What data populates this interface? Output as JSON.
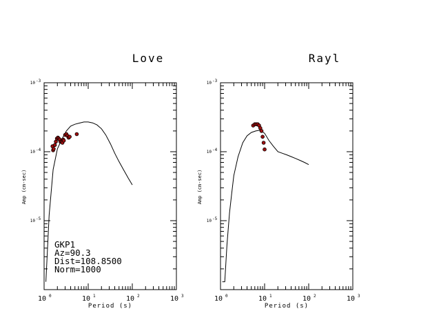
{
  "chart_data": [
    {
      "type": "line",
      "title": "Love",
      "xlabel": "Period (s)",
      "ylabel": "Amp (cm-sec)",
      "x_scale": "log",
      "y_scale": "log",
      "xlim": [
        1,
        1000
      ],
      "ylim": [
        1e-06,
        0.001
      ],
      "xticks": [
        {
          "base": "10",
          "exp": "0"
        },
        {
          "base": "10",
          "exp": "1"
        },
        {
          "base": "10",
          "exp": "2"
        },
        {
          "base": "10",
          "exp": "3"
        }
      ],
      "yticks": [
        {
          "base": "10",
          "exp": "-5"
        },
        {
          "base": "10",
          "exp": "-4"
        },
        {
          "base": "10",
          "exp": "-3"
        }
      ],
      "line_color": "#000000",
      "marker_color": "#a01010",
      "series": [
        {
          "kind": "line",
          "x": [
            1.1,
            1.3,
            1.6,
            2.0,
            2.5,
            3.2,
            4.0,
            5.0,
            6.3,
            8.0,
            10,
            12.6,
            15.8,
            20,
            25,
            32,
            40,
            50,
            63,
            80,
            100
          ],
          "y": [
            1.3e-06,
            1.2e-05,
            5.5e-05,
            0.00011,
            0.00015,
            0.0002,
            0.000235,
            0.00025,
            0.00026,
            0.00027,
            0.00027,
            0.000262,
            0.000245,
            0.000215,
            0.000175,
            0.00013,
            9.5e-05,
            7.2e-05,
            5.5e-05,
            4.2e-05,
            3.3e-05
          ]
        },
        {
          "kind": "scatter",
          "x": [
            1.55,
            1.6,
            1.65,
            1.75,
            1.85,
            1.95,
            2.05,
            2.15,
            2.25,
            2.35,
            2.5,
            2.6,
            2.7,
            2.8,
            3.0,
            3.2,
            3.4,
            3.6,
            3.8,
            5.5
          ],
          "y": [
            0.00012,
            0.000105,
            0.00011,
            0.000125,
            0.00014,
            0.000155,
            0.00016,
            0.000155,
            0.00015,
            0.00014,
            0.00014,
            0.000135,
            0.00015,
            0.000145,
            0.000175,
            0.00018,
            0.00017,
            0.00016,
            0.000165,
            0.00018
          ]
        }
      ],
      "annotations": [
        "GKP1",
        "Az=90.3",
        "Dist=108.8500",
        "Norm=1000"
      ]
    },
    {
      "type": "line",
      "title": "Rayl",
      "xlabel": "Period (s)",
      "ylabel": "Amp (cm-sec)",
      "x_scale": "log",
      "y_scale": "log",
      "xlim": [
        1,
        1000
      ],
      "ylim": [
        1e-06,
        0.001
      ],
      "xticks": [
        {
          "base": "10",
          "exp": "0"
        },
        {
          "base": "10",
          "exp": "1"
        },
        {
          "base": "10",
          "exp": "2"
        },
        {
          "base": "10",
          "exp": "3"
        }
      ],
      "yticks": [
        {
          "base": "10",
          "exp": "-5"
        },
        {
          "base": "10",
          "exp": "-4"
        },
        {
          "base": "10",
          "exp": "-3"
        }
      ],
      "line_color": "#000000",
      "marker_color": "#a01010",
      "series": [
        {
          "kind": "line",
          "x": [
            1.1,
            1.25,
            1.4,
            1.6,
            1.8,
            2.0,
            2.5,
            3.2,
            4.0,
            5.0,
            6.3,
            8.0,
            10,
            12.6,
            15.8,
            20,
            25,
            32,
            40,
            50,
            63,
            80,
            100
          ],
          "y": [
            1.3e-06,
            1.3e-06,
            4.5e-06,
            1.3e-05,
            2.5e-05,
            4.5e-05,
            8.5e-05,
            0.000135,
            0.00017,
            0.00019,
            0.0002,
            0.000205,
            0.000185,
            0.000145,
            0.00012,
            0.0001,
            9.5e-05,
            9e-05,
            8.5e-05,
            8e-05,
            7.5e-05,
            7e-05,
            6.5e-05
          ]
        },
        {
          "kind": "scatter",
          "x": [
            5.5,
            6.0,
            6.5,
            7.0,
            7.5,
            8.0,
            8.5,
            9.0,
            9.5,
            10.0
          ],
          "y": [
            0.00024,
            0.00025,
            0.00025,
            0.00025,
            0.00024,
            0.00022,
            0.0002,
            0.000165,
            0.000135,
            0.000108
          ]
        }
      ]
    }
  ]
}
